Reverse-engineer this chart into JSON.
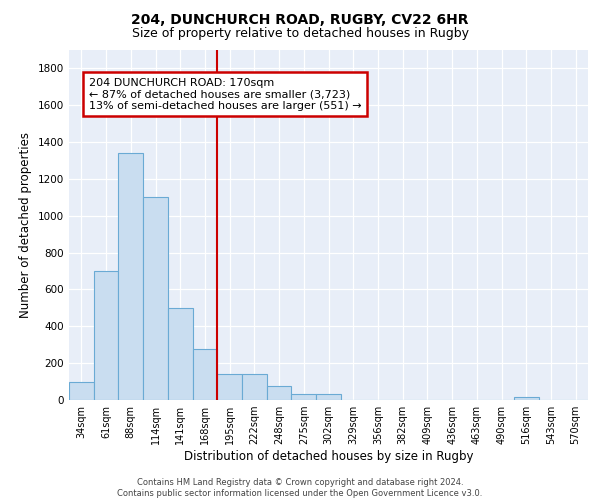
{
  "title_line1": "204, DUNCHURCH ROAD, RUGBY, CV22 6HR",
  "title_line2": "Size of property relative to detached houses in Rugby",
  "xlabel": "Distribution of detached houses by size in Rugby",
  "ylabel": "Number of detached properties",
  "bin_labels": [
    "34sqm",
    "61sqm",
    "88sqm",
    "114sqm",
    "141sqm",
    "168sqm",
    "195sqm",
    "222sqm",
    "248sqm",
    "275sqm",
    "302sqm",
    "329sqm",
    "356sqm",
    "382sqm",
    "409sqm",
    "436sqm",
    "463sqm",
    "490sqm",
    "516sqm",
    "543sqm",
    "570sqm"
  ],
  "bar_heights": [
    100,
    700,
    1340,
    1100,
    500,
    275,
    140,
    140,
    75,
    30,
    30,
    0,
    0,
    0,
    0,
    0,
    0,
    0,
    15,
    0,
    0
  ],
  "bar_color": "#c9ddf0",
  "bar_edge_color": "#6aaad4",
  "vline_x": 5.5,
  "vline_color": "#cc0000",
  "annotation_line1": "204 DUNCHURCH ROAD: 170sqm",
  "annotation_line2": "← 87% of detached houses are smaller (3,723)",
  "annotation_line3": "13% of semi-detached houses are larger (551) →",
  "annotation_box_color": "#ffffff",
  "annotation_box_edge": "#cc0000",
  "ylim": [
    0,
    1900
  ],
  "yticks": [
    0,
    200,
    400,
    600,
    800,
    1000,
    1200,
    1400,
    1600,
    1800
  ],
  "bg_color": "#e8eef8",
  "grid_color": "#ffffff",
  "footer_text": "Contains HM Land Registry data © Crown copyright and database right 2024.\nContains public sector information licensed under the Open Government Licence v3.0.",
  "title_fontsize": 10,
  "subtitle_fontsize": 9,
  "axis_label_fontsize": 8.5,
  "tick_fontsize": 7,
  "annotation_fontsize": 8,
  "footer_fontsize": 6
}
